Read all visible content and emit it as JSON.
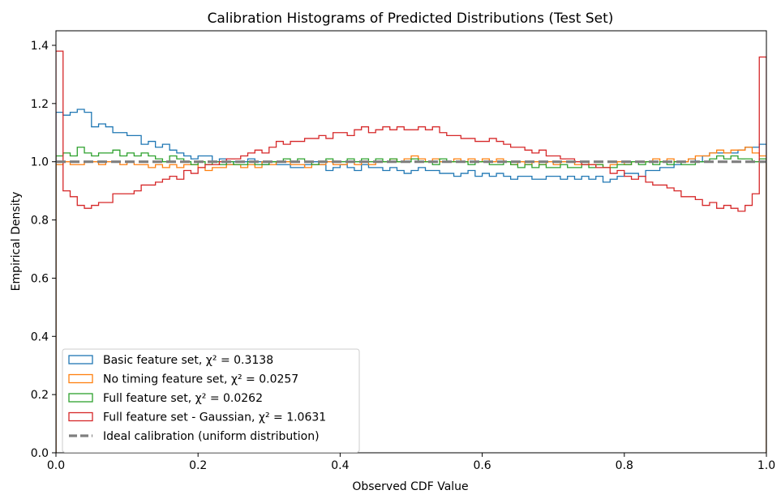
{
  "chart_data": {
    "type": "step-histogram",
    "title": "Calibration Histograms of Predicted Distributions (Test Set)",
    "xlabel": "Observed CDF Value",
    "ylabel": "Empirical Density",
    "xlim": [
      0,
      1
    ],
    "ylim": [
      0,
      1.45
    ],
    "xticks": [
      "0.0",
      "0.2",
      "0.4",
      "0.6",
      "0.8",
      "1.0"
    ],
    "yticks": [
      "0.0",
      "0.2",
      "0.4",
      "0.6",
      "0.8",
      "1.0",
      "1.2",
      "1.4"
    ],
    "grid": false,
    "legend_position": "lower-left",
    "bins": 100,
    "series": [
      {
        "name": "Basic feature set, χ² = 0.3138",
        "color": "#1f77b4",
        "values": [
          1.17,
          1.16,
          1.17,
          1.18,
          1.17,
          1.12,
          1.13,
          1.12,
          1.1,
          1.1,
          1.09,
          1.09,
          1.06,
          1.07,
          1.05,
          1.06,
          1.04,
          1.03,
          1.02,
          1.01,
          1.02,
          1.02,
          1.0,
          1.01,
          0.99,
          1.0,
          1.0,
          1.01,
          1.0,
          0.99,
          1.0,
          0.99,
          0.99,
          0.98,
          0.98,
          0.99,
          1.0,
          0.99,
          0.97,
          0.98,
          0.99,
          0.98,
          0.97,
          0.99,
          0.98,
          0.98,
          0.97,
          0.98,
          0.97,
          0.96,
          0.97,
          0.98,
          0.97,
          0.97,
          0.96,
          0.96,
          0.95,
          0.96,
          0.97,
          0.95,
          0.96,
          0.95,
          0.96,
          0.95,
          0.94,
          0.95,
          0.95,
          0.94,
          0.94,
          0.95,
          0.95,
          0.94,
          0.95,
          0.94,
          0.95,
          0.94,
          0.95,
          0.93,
          0.94,
          0.95,
          0.96,
          0.96,
          0.95,
          0.97,
          0.97,
          0.98,
          0.98,
          0.99,
          1.0,
          1.01,
          1.0,
          1.02,
          1.03,
          1.03,
          1.03,
          1.03,
          1.04,
          1.05,
          1.05,
          1.06
        ]
      },
      {
        "name": "No timing feature set, χ² = 0.0257",
        "color": "#ff7f0e",
        "values": [
          0.99,
          1.0,
          0.99,
          0.99,
          1.0,
          1.0,
          0.99,
          1.0,
          1.0,
          0.99,
          1.0,
          0.99,
          0.99,
          0.98,
          0.99,
          0.98,
          0.99,
          0.98,
          0.99,
          0.99,
          0.98,
          0.97,
          0.98,
          0.98,
          0.99,
          0.99,
          0.98,
          0.99,
          0.98,
          1.0,
          0.99,
          1.0,
          1.0,
          0.99,
          0.99,
          0.98,
          0.99,
          0.99,
          1.0,
          0.99,
          0.99,
          1.0,
          0.99,
          1.0,
          0.99,
          1.0,
          1.0,
          1.01,
          1.0,
          1.01,
          1.02,
          1.01,
          1.0,
          1.01,
          1.0,
          1.0,
          1.01,
          1.0,
          1.01,
          1.0,
          1.01,
          1.0,
          1.01,
          1.0,
          0.99,
          1.0,
          0.99,
          1.0,
          0.99,
          1.0,
          0.99,
          1.0,
          1.0,
          0.99,
          1.0,
          0.99,
          0.99,
          0.98,
          0.99,
          1.0,
          0.99,
          1.0,
          1.0,
          1.0,
          1.01,
          1.0,
          1.01,
          1.0,
          1.0,
          1.01,
          1.02,
          1.02,
          1.03,
          1.04,
          1.03,
          1.04,
          1.04,
          1.05,
          1.03,
          1.02
        ]
      },
      {
        "name": "Full feature set, χ² = 0.0262",
        "color": "#2ca02c",
        "values": [
          1.02,
          1.03,
          1.02,
          1.05,
          1.03,
          1.02,
          1.03,
          1.03,
          1.04,
          1.02,
          1.03,
          1.02,
          1.03,
          1.02,
          1.01,
          1.0,
          1.02,
          1.01,
          1.0,
          0.99,
          1.0,
          0.99,
          1.0,
          0.99,
          1.0,
          0.99,
          0.99,
          1.0,
          0.99,
          0.99,
          1.0,
          1.0,
          1.01,
          1.0,
          1.01,
          1.0,
          0.99,
          1.0,
          1.01,
          1.0,
          1.0,
          1.01,
          1.0,
          1.01,
          1.0,
          1.01,
          1.0,
          1.01,
          1.0,
          1.0,
          1.01,
          1.0,
          1.0,
          0.99,
          1.01,
          1.0,
          1.0,
          1.0,
          0.99,
          1.0,
          1.0,
          0.99,
          0.99,
          1.0,
          0.99,
          0.98,
          0.99,
          0.98,
          0.99,
          0.98,
          0.98,
          0.99,
          0.98,
          0.98,
          0.99,
          0.98,
          0.99,
          0.98,
          0.98,
          0.99,
          0.99,
          1.0,
          0.99,
          1.0,
          0.99,
          1.0,
          0.99,
          1.0,
          0.99,
          0.99,
          1.0,
          1.0,
          1.01,
          1.02,
          1.01,
          1.02,
          1.01,
          1.01,
          1.0,
          1.01
        ]
      },
      {
        "name": "Full feature set - Gaussian, χ² = 1.0631",
        "color": "#d62728",
        "values": [
          1.38,
          0.9,
          0.88,
          0.85,
          0.84,
          0.85,
          0.86,
          0.86,
          0.89,
          0.89,
          0.89,
          0.9,
          0.92,
          0.92,
          0.93,
          0.94,
          0.95,
          0.94,
          0.97,
          0.96,
          0.98,
          0.99,
          0.99,
          1.0,
          1.01,
          1.01,
          1.02,
          1.03,
          1.04,
          1.03,
          1.05,
          1.07,
          1.06,
          1.07,
          1.07,
          1.08,
          1.08,
          1.09,
          1.08,
          1.1,
          1.1,
          1.09,
          1.11,
          1.12,
          1.1,
          1.11,
          1.12,
          1.11,
          1.12,
          1.11,
          1.11,
          1.12,
          1.11,
          1.12,
          1.1,
          1.09,
          1.09,
          1.08,
          1.08,
          1.07,
          1.07,
          1.08,
          1.07,
          1.06,
          1.05,
          1.05,
          1.04,
          1.03,
          1.04,
          1.02,
          1.02,
          1.01,
          1.01,
          1.0,
          0.99,
          0.99,
          0.98,
          0.98,
          0.96,
          0.97,
          0.95,
          0.94,
          0.95,
          0.93,
          0.92,
          0.92,
          0.91,
          0.9,
          0.88,
          0.88,
          0.87,
          0.85,
          0.86,
          0.84,
          0.85,
          0.84,
          0.83,
          0.85,
          0.89,
          1.36
        ]
      }
    ],
    "reference_line": {
      "name": "Ideal calibration (uniform distribution)",
      "color": "#7f7f7f",
      "value": 1.0,
      "style": "dashed"
    }
  }
}
